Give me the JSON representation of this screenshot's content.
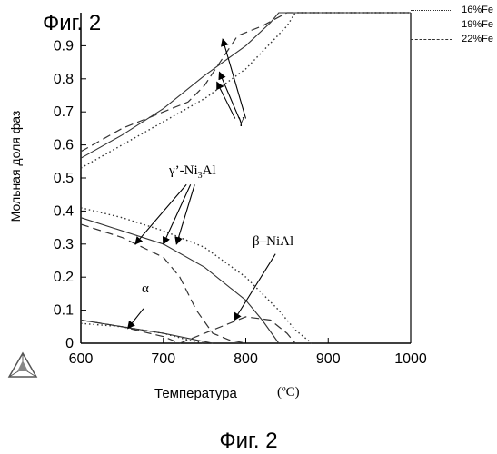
{
  "figure_label_top": "Фиг. 2",
  "figure_label_bottom": "Фиг. 2",
  "chart_data": {
    "type": "line",
    "title": "",
    "xlabel": "Температура",
    "xlabel_unit": "(ºC)",
    "ylabel": "Мольная доля фаз",
    "xlim": [
      600,
      1000
    ],
    "ylim": [
      0,
      1.0
    ],
    "x_ticks": [
      600,
      700,
      800,
      900,
      1000
    ],
    "y_ticks": [
      0,
      0.1,
      0.2,
      0.3,
      0.4,
      0.5,
      0.6,
      0.7,
      0.8,
      0.9
    ],
    "grid": false,
    "legend_position": "top-right",
    "legend": [
      {
        "label": "16%Fe",
        "style": "dotted"
      },
      {
        "label": "19%Fe",
        "style": "solid"
      },
      {
        "label": "22%Fe",
        "style": "dashed"
      }
    ],
    "series": [
      {
        "phase": "γ",
        "label": "16%Fe",
        "style": "dotted",
        "x": [
          600,
          650,
          700,
          750,
          800,
          850,
          860,
          1000
        ],
        "y": [
          0.53,
          0.6,
          0.67,
          0.74,
          0.83,
          0.96,
          1.0,
          1.0
        ]
      },
      {
        "phase": "γ",
        "label": "19%Fe",
        "style": "solid",
        "x": [
          600,
          650,
          700,
          750,
          800,
          830,
          840,
          1000
        ],
        "y": [
          0.56,
          0.63,
          0.71,
          0.81,
          0.9,
          0.97,
          1.0,
          1.0
        ]
      },
      {
        "phase": "γ",
        "label": "22%Fe",
        "style": "dashed",
        "x": [
          600,
          650,
          700,
          730,
          750,
          790,
          820,
          850,
          1000
        ],
        "y": [
          0.58,
          0.65,
          0.7,
          0.73,
          0.78,
          0.93,
          0.96,
          1.0,
          1.0
        ]
      },
      {
        "phase": "γ’-Ni3Al",
        "label": "16%Fe",
        "style": "dotted",
        "x": [
          600,
          650,
          700,
          750,
          800,
          840,
          860,
          880
        ],
        "y": [
          0.41,
          0.38,
          0.34,
          0.29,
          0.2,
          0.1,
          0.04,
          0.0
        ]
      },
      {
        "phase": "γ’-Ni3Al",
        "label": "19%Fe",
        "style": "solid",
        "x": [
          600,
          650,
          700,
          750,
          800,
          820,
          840
        ],
        "y": [
          0.38,
          0.34,
          0.3,
          0.23,
          0.13,
          0.07,
          0.0
        ]
      },
      {
        "phase": "γ’-Ni3Al",
        "label": "22%Fe",
        "style": "dashed",
        "x": [
          600,
          650,
          700,
          720,
          740,
          760,
          780,
          800
        ],
        "y": [
          0.36,
          0.32,
          0.26,
          0.2,
          0.1,
          0.03,
          0.01,
          0.0
        ]
      },
      {
        "phase": "β–NiAl",
        "label": "22%Fe",
        "style": "dashed",
        "x": [
          720,
          760,
          800,
          830,
          850,
          860
        ],
        "y": [
          0.0,
          0.04,
          0.08,
          0.07,
          0.03,
          0.0
        ]
      },
      {
        "phase": "α",
        "label": "16%Fe",
        "style": "dotted",
        "x": [
          600,
          650,
          700,
          730,
          750
        ],
        "y": [
          0.06,
          0.05,
          0.03,
          0.01,
          0.0
        ]
      },
      {
        "phase": "α",
        "label": "19%Fe",
        "style": "solid",
        "x": [
          600,
          650,
          700,
          740,
          760
        ],
        "y": [
          0.07,
          0.05,
          0.03,
          0.01,
          0.0
        ]
      },
      {
        "phase": "α",
        "label": "22%Fe",
        "style": "dashed",
        "x": [
          600,
          650,
          700,
          720
        ],
        "y": [
          0.07,
          0.05,
          0.02,
          0.0
        ]
      }
    ],
    "annotations": [
      {
        "text": "γ",
        "x": 797,
        "y": 0.69
      },
      {
        "text": "γ’-Ni3Al",
        "x": 700,
        "y": 0.5
      },
      {
        "text": "β–NiAl",
        "x": 840,
        "y": 0.29
      },
      {
        "text": "α",
        "x": 681,
        "y": 0.163
      }
    ]
  },
  "colors": {
    "axis": "#000000",
    "series": "#333333",
    "logo": "#555555"
  }
}
